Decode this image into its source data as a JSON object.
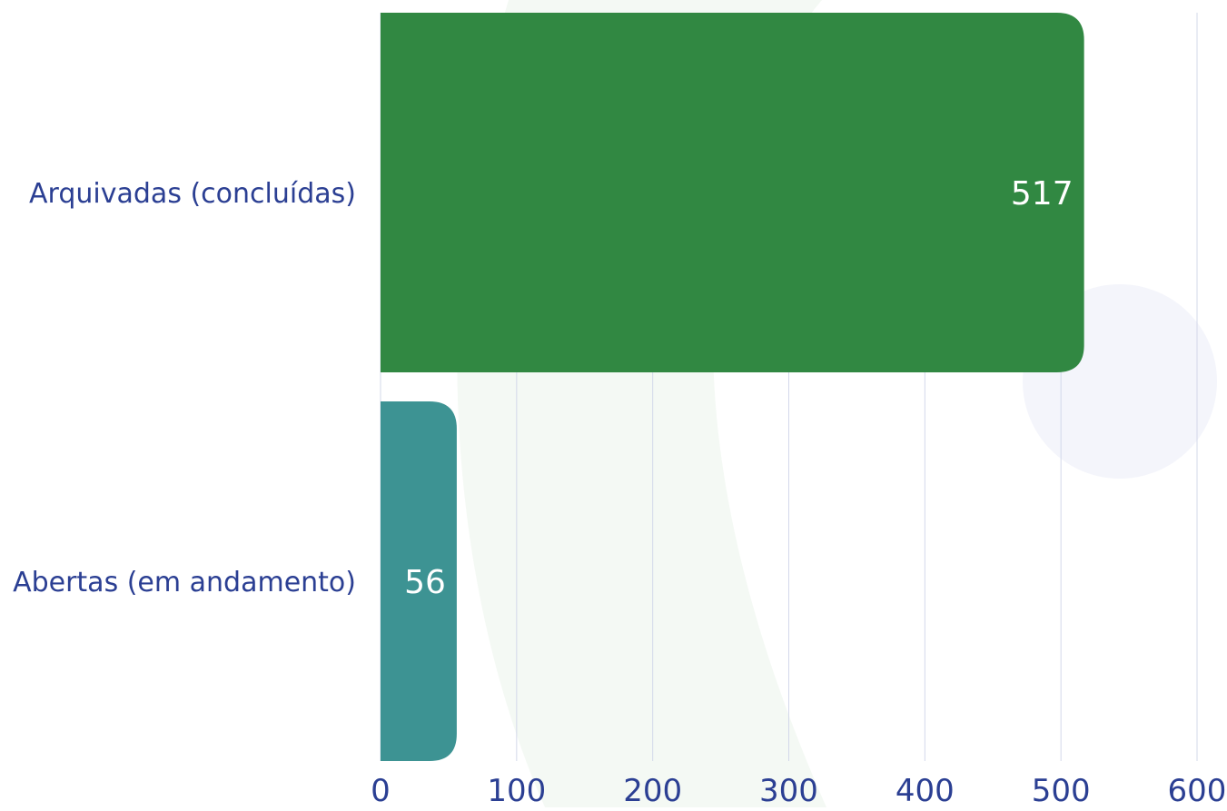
{
  "chart_data": {
    "type": "bar",
    "orientation": "horizontal",
    "categories": [
      "Arquivadas (concluídas)",
      "Abertas (em andamento)"
    ],
    "values": [
      517,
      56
    ],
    "data_labels": [
      "517",
      "56"
    ],
    "xlim": [
      0,
      600
    ],
    "x_ticks": [
      "0",
      "100",
      "200",
      "300",
      "400",
      "500",
      "600"
    ],
    "grid": "vertical",
    "title": "",
    "xlabel": "",
    "ylabel": "",
    "colors": {
      "bars": [
        "#318842",
        "#3d9393"
      ],
      "category_label": "#2b3f93",
      "tick_label": "#2b3f93",
      "data_label": "#ffffff",
      "gridline": "#d3d8ea",
      "background_swoosh": "#f4f9f4",
      "background_circle": "#f4f5fb"
    }
  }
}
